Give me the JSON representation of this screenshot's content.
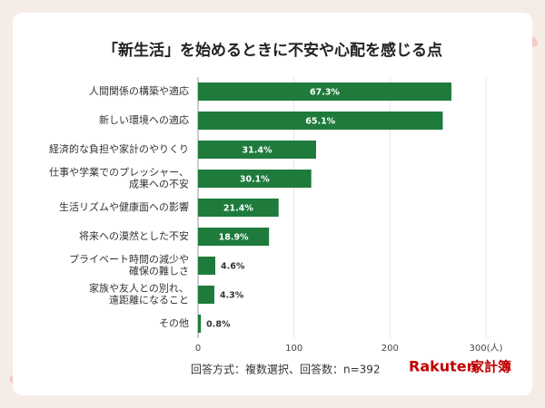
{
  "chart_data": {
    "type": "barh",
    "title": "「新生活」を始めるときに不安や心配を感じる点",
    "categories": [
      [
        "人間関係の構築や適応"
      ],
      [
        "新しい環境への適応"
      ],
      [
        "経済的な負担や家計のやりくり"
      ],
      [
        "仕事や学業でのプレッシャー、",
        "成果への不安"
      ],
      [
        "生活リズムや健康面への影響"
      ],
      [
        "将来への漠然とした不安"
      ],
      [
        "プライベート時間の減少や",
        "確保の難しさ"
      ],
      [
        "家族や友人との別れ、",
        "遠距離になること"
      ],
      [
        "その他"
      ]
    ],
    "values": [
      264,
      255,
      123,
      118,
      84,
      74,
      18,
      17,
      3
    ],
    "value_labels": [
      "67.3%",
      "65.1%",
      "31.4%",
      "30.1%",
      "21.4%",
      "18.9%",
      "4.6%",
      "4.3%",
      "0.8%"
    ],
    "color": "#1e7b3c",
    "xlim": [
      0,
      300
    ],
    "xticks": [
      0,
      100,
      200,
      {
        "value": 300,
        "label": "300(人)"
      }
    ],
    "grid": true,
    "note": "回答方式：複数選択、回答数：n=392",
    "logo": {
      "brand": "Rakuten",
      "product": "家計簿"
    }
  }
}
